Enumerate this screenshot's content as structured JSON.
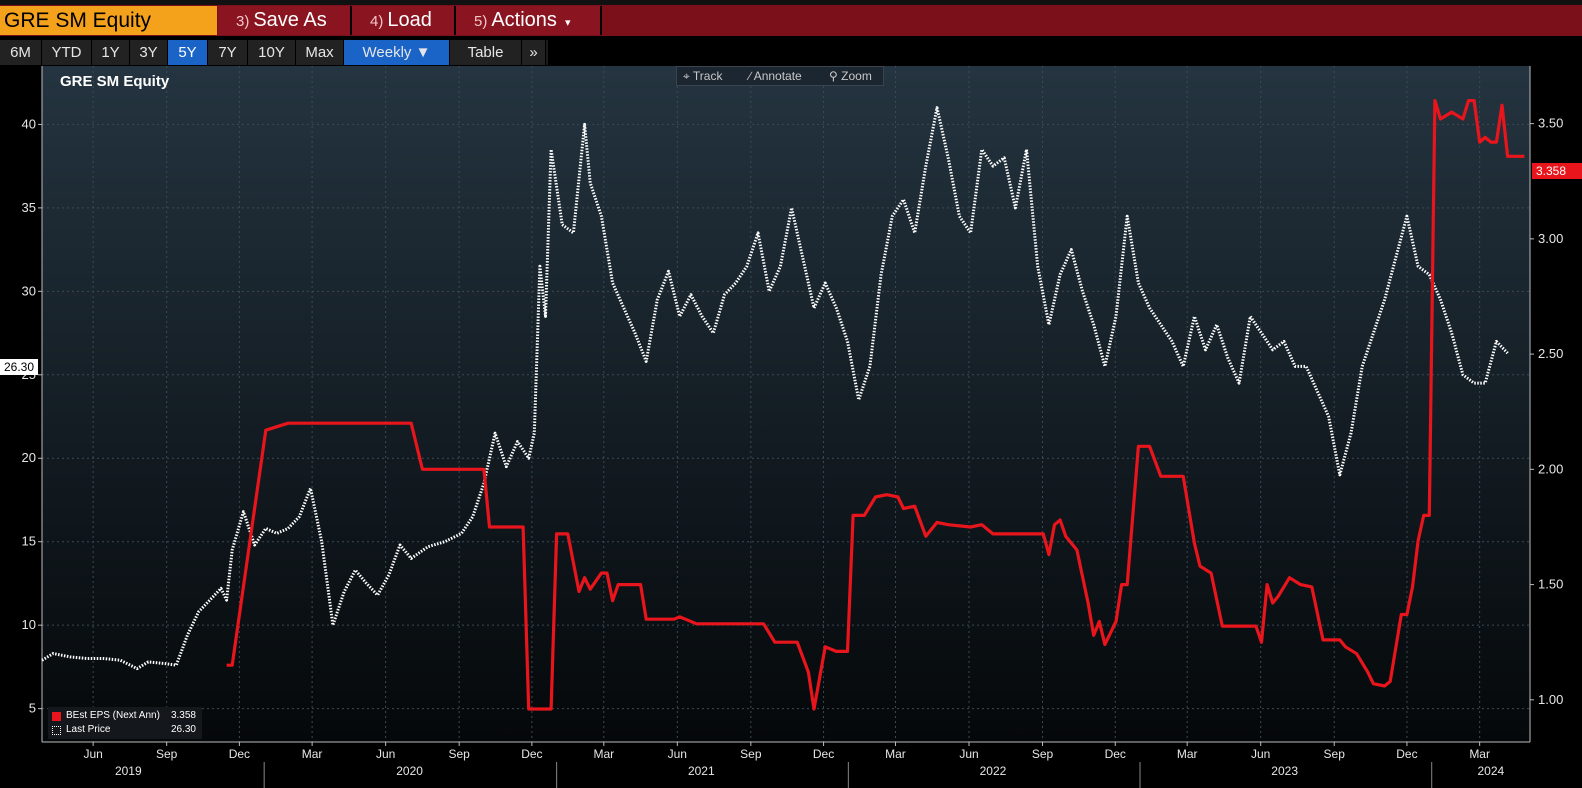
{
  "header": {
    "ticker": "GRE SM Equity",
    "save_as": {
      "num": "3)",
      "label": "Save As"
    },
    "load": {
      "num": "4)",
      "label": "Load"
    },
    "actions": {
      "num": "5)",
      "label": "Actions",
      "caret": "▾"
    }
  },
  "ranges": [
    "6M",
    "YTD",
    "1Y",
    "3Y",
    "5Y",
    "7Y",
    "10Y",
    "Max"
  ],
  "selected_range": "5Y",
  "frequency": {
    "label": "Weekly",
    "caret": "▼"
  },
  "table_label": "Table",
  "more_label": "»",
  "tools": {
    "track": "Track",
    "annotate": "Annotate",
    "zoom": "Zoom"
  },
  "icons": {
    "track": "crosshair-icon",
    "annotate": "pencil-icon",
    "zoom": "magnifier-icon"
  },
  "colors": {
    "eps": "#e8151c",
    "price": "#ffffff",
    "header": "#7b0f1a",
    "ticker_bg": "#f4a11c",
    "selected": "#1a64c8"
  },
  "current": {
    "left": "26.30",
    "right": "3.358"
  },
  "legend": {
    "eps_name": "BEst EPS (Next Ann)",
    "eps_value": "3.358",
    "price_name": "Last Price",
    "price_value": "26.30"
  },
  "chart_data": {
    "type": "line",
    "title": "GRE SM Equity",
    "grid": true,
    "legend_position": "bottom-left",
    "x_range": [
      "2019-03-29",
      "2024-05-03"
    ],
    "left_axis": {
      "ticks": [
        5,
        10,
        15,
        20,
        25,
        30,
        35,
        40
      ],
      "ylim": [
        3.0,
        43.5
      ]
    },
    "right_axis": {
      "ticks": [
        "1.00",
        "1.50",
        "2.00",
        "2.50",
        "3.00",
        "3.50"
      ],
      "ylim": [
        0.817,
        3.75
      ]
    },
    "month_ticks": [
      {
        "label": "Jun",
        "date": "2019-06-01"
      },
      {
        "label": "Sep",
        "date": "2019-09-01"
      },
      {
        "label": "Dec",
        "date": "2019-12-01"
      },
      {
        "label": "Mar",
        "date": "2020-03-01"
      },
      {
        "label": "Jun",
        "date": "2020-06-01"
      },
      {
        "label": "Sep",
        "date": "2020-09-01"
      },
      {
        "label": "Dec",
        "date": "2020-12-01"
      },
      {
        "label": "Mar",
        "date": "2021-03-01"
      },
      {
        "label": "Jun",
        "date": "2021-06-01"
      },
      {
        "label": "Sep",
        "date": "2021-09-01"
      },
      {
        "label": "Dec",
        "date": "2021-12-01"
      },
      {
        "label": "Mar",
        "date": "2022-03-01"
      },
      {
        "label": "Jun",
        "date": "2022-06-01"
      },
      {
        "label": "Sep",
        "date": "2022-09-01"
      },
      {
        "label": "Dec",
        "date": "2022-12-01"
      },
      {
        "label": "Mar",
        "date": "2023-03-01"
      },
      {
        "label": "Jun",
        "date": "2023-06-01"
      },
      {
        "label": "Sep",
        "date": "2023-09-01"
      },
      {
        "label": "Dec",
        "date": "2023-12-01"
      },
      {
        "label": "Mar",
        "date": "2024-03-01"
      }
    ],
    "year_ticks": [
      {
        "label": "2019",
        "date": "2019-07-15"
      },
      {
        "label": "2020",
        "date": "2020-07-01"
      },
      {
        "label": "2021",
        "date": "2021-07-01"
      },
      {
        "label": "2022",
        "date": "2022-07-01"
      },
      {
        "label": "2023",
        "date": "2023-07-01"
      },
      {
        "label": "2024",
        "date": "2024-03-15"
      }
    ],
    "year_separators": [
      "2020-01-01",
      "2021-01-01",
      "2022-01-01",
      "2023-01-01",
      "2024-01-01"
    ],
    "series": [
      {
        "name": "Last Price",
        "axis": "left",
        "style": "dotted",
        "points": [
          [
            "2019-03-29",
            7.9
          ],
          [
            "2019-04-12",
            8.3
          ],
          [
            "2019-05-03",
            8.1
          ],
          [
            "2019-05-24",
            8.0
          ],
          [
            "2019-06-14",
            8.0
          ],
          [
            "2019-07-05",
            7.9
          ],
          [
            "2019-07-26",
            7.4
          ],
          [
            "2019-08-09",
            7.8
          ],
          [
            "2019-08-30",
            7.7
          ],
          [
            "2019-09-13",
            7.6
          ],
          [
            "2019-09-27",
            9.4
          ],
          [
            "2019-10-11",
            10.8
          ],
          [
            "2019-10-25",
            11.5
          ],
          [
            "2019-11-08",
            12.2
          ],
          [
            "2019-11-15",
            11.5
          ],
          [
            "2019-11-22",
            14.5
          ],
          [
            "2019-12-06",
            16.8
          ],
          [
            "2019-12-20",
            14.8
          ],
          [
            "2020-01-03",
            15.8
          ],
          [
            "2020-01-17",
            15.5
          ],
          [
            "2020-01-31",
            15.8
          ],
          [
            "2020-02-14",
            16.5
          ],
          [
            "2020-02-28",
            18.2
          ],
          [
            "2020-03-13",
            15.0
          ],
          [
            "2020-03-27",
            10.0
          ],
          [
            "2020-04-10",
            12.0
          ],
          [
            "2020-04-24",
            13.3
          ],
          [
            "2020-05-08",
            12.5
          ],
          [
            "2020-05-22",
            11.8
          ],
          [
            "2020-06-05",
            13.0
          ],
          [
            "2020-06-19",
            14.8
          ],
          [
            "2020-07-03",
            14.0
          ],
          [
            "2020-07-24",
            14.7
          ],
          [
            "2020-08-14",
            15.0
          ],
          [
            "2020-09-04",
            15.5
          ],
          [
            "2020-09-18",
            16.5
          ],
          [
            "2020-10-02",
            18.5
          ],
          [
            "2020-10-16",
            21.5
          ],
          [
            "2020-10-30",
            19.5
          ],
          [
            "2020-11-13",
            21.0
          ],
          [
            "2020-11-27",
            20.0
          ],
          [
            "2020-12-04",
            21.5
          ],
          [
            "2020-12-11",
            31.5
          ],
          [
            "2020-12-18",
            28.5
          ],
          [
            "2020-12-25",
            38.5
          ],
          [
            "2021-01-08",
            34.0
          ],
          [
            "2021-01-22",
            33.5
          ],
          [
            "2021-02-05",
            40.0
          ],
          [
            "2021-02-12",
            36.5
          ],
          [
            "2021-02-26",
            34.5
          ],
          [
            "2021-03-12",
            30.5
          ],
          [
            "2021-03-26",
            29.0
          ],
          [
            "2021-04-09",
            27.5
          ],
          [
            "2021-04-23",
            25.8
          ],
          [
            "2021-05-07",
            29.5
          ],
          [
            "2021-05-21",
            31.2
          ],
          [
            "2021-06-04",
            28.5
          ],
          [
            "2021-06-18",
            29.8
          ],
          [
            "2021-07-02",
            28.5
          ],
          [
            "2021-07-16",
            27.5
          ],
          [
            "2021-07-30",
            29.8
          ],
          [
            "2021-08-13",
            30.5
          ],
          [
            "2021-08-27",
            31.5
          ],
          [
            "2021-09-10",
            33.5
          ],
          [
            "2021-09-24",
            30.0
          ],
          [
            "2021-10-08",
            31.5
          ],
          [
            "2021-10-22",
            35.0
          ],
          [
            "2021-11-05",
            32.0
          ],
          [
            "2021-11-19",
            29.0
          ],
          [
            "2021-12-03",
            30.5
          ],
          [
            "2021-12-17",
            29.0
          ],
          [
            "2021-12-31",
            27.0
          ],
          [
            "2022-01-14",
            23.5
          ],
          [
            "2022-01-28",
            25.5
          ],
          [
            "2022-02-11",
            31.0
          ],
          [
            "2022-02-25",
            34.5
          ],
          [
            "2022-03-11",
            35.5
          ],
          [
            "2022-03-25",
            33.5
          ],
          [
            "2022-04-08",
            37.5
          ],
          [
            "2022-04-22",
            41.0
          ],
          [
            "2022-05-06",
            38.0
          ],
          [
            "2022-05-20",
            34.5
          ],
          [
            "2022-06-03",
            33.5
          ],
          [
            "2022-06-17",
            38.5
          ],
          [
            "2022-07-01",
            37.5
          ],
          [
            "2022-07-15",
            38.0
          ],
          [
            "2022-07-29",
            35.0
          ],
          [
            "2022-08-12",
            38.5
          ],
          [
            "2022-08-26",
            31.5
          ],
          [
            "2022-09-09",
            28.0
          ],
          [
            "2022-09-23",
            31.0
          ],
          [
            "2022-10-07",
            32.5
          ],
          [
            "2022-10-21",
            30.0
          ],
          [
            "2022-11-04",
            28.0
          ],
          [
            "2022-11-18",
            25.5
          ],
          [
            "2022-12-02",
            28.5
          ],
          [
            "2022-12-16",
            34.5
          ],
          [
            "2022-12-30",
            30.5
          ],
          [
            "2023-01-13",
            29.0
          ],
          [
            "2023-01-27",
            28.0
          ],
          [
            "2023-02-10",
            27.0
          ],
          [
            "2023-02-24",
            25.5
          ],
          [
            "2023-03-10",
            28.5
          ],
          [
            "2023-03-24",
            26.5
          ],
          [
            "2023-04-07",
            28.0
          ],
          [
            "2023-04-21",
            26.0
          ],
          [
            "2023-05-05",
            24.5
          ],
          [
            "2023-05-19",
            28.5
          ],
          [
            "2023-06-02",
            27.5
          ],
          [
            "2023-06-16",
            26.5
          ],
          [
            "2023-06-30",
            27.0
          ],
          [
            "2023-07-14",
            25.5
          ],
          [
            "2023-07-28",
            25.5
          ],
          [
            "2023-08-11",
            24.0
          ],
          [
            "2023-08-25",
            22.5
          ],
          [
            "2023-09-08",
            19.0
          ],
          [
            "2023-09-22",
            21.5
          ],
          [
            "2023-10-06",
            25.5
          ],
          [
            "2023-10-20",
            27.5
          ],
          [
            "2023-11-03",
            29.5
          ],
          [
            "2023-11-17",
            32.0
          ],
          [
            "2023-12-01",
            34.5
          ],
          [
            "2023-12-15",
            31.5
          ],
          [
            "2023-12-29",
            31.0
          ],
          [
            "2024-01-12",
            29.5
          ],
          [
            "2024-01-26",
            27.5
          ],
          [
            "2024-02-09",
            25.0
          ],
          [
            "2024-02-23",
            24.5
          ],
          [
            "2024-03-08",
            24.5
          ],
          [
            "2024-03-22",
            27.0
          ],
          [
            "2024-04-05",
            26.3
          ]
        ]
      },
      {
        "name": "BEst EPS (Next Ann)",
        "axis": "right",
        "style": "solid",
        "points": [
          [
            "2019-11-15",
            1.15
          ],
          [
            "2019-11-22",
            1.15
          ],
          [
            "2020-01-03",
            2.17
          ],
          [
            "2020-01-31",
            2.2
          ],
          [
            "2020-07-03",
            2.2
          ],
          [
            "2020-07-17",
            2.0
          ],
          [
            "2020-10-02",
            2.0
          ],
          [
            "2020-10-09",
            1.75
          ],
          [
            "2020-11-20",
            1.75
          ],
          [
            "2020-11-27",
            0.96
          ],
          [
            "2020-12-25",
            0.96
          ],
          [
            "2021-01-01",
            1.72
          ],
          [
            "2021-01-15",
            1.72
          ],
          [
            "2021-01-29",
            1.47
          ],
          [
            "2021-02-05",
            1.53
          ],
          [
            "2021-02-12",
            1.48
          ],
          [
            "2021-02-26",
            1.55
          ],
          [
            "2021-03-05",
            1.55
          ],
          [
            "2021-03-12",
            1.43
          ],
          [
            "2021-03-19",
            1.5
          ],
          [
            "2021-04-16",
            1.5
          ],
          [
            "2021-04-23",
            1.35
          ],
          [
            "2021-05-28",
            1.35
          ],
          [
            "2021-06-04",
            1.36
          ],
          [
            "2021-06-25",
            1.33
          ],
          [
            "2021-09-17",
            1.33
          ],
          [
            "2021-10-01",
            1.25
          ],
          [
            "2021-10-29",
            1.25
          ],
          [
            "2021-11-12",
            1.12
          ],
          [
            "2021-11-19",
            0.96
          ],
          [
            "2021-12-03",
            1.23
          ],
          [
            "2021-12-17",
            1.21
          ],
          [
            "2021-12-31",
            1.21
          ],
          [
            "2022-01-07",
            1.8
          ],
          [
            "2022-01-21",
            1.8
          ],
          [
            "2022-02-04",
            1.88
          ],
          [
            "2022-02-18",
            1.89
          ],
          [
            "2022-03-04",
            1.88
          ],
          [
            "2022-03-11",
            1.83
          ],
          [
            "2022-03-25",
            1.84
          ],
          [
            "2022-04-08",
            1.71
          ],
          [
            "2022-04-22",
            1.77
          ],
          [
            "2022-05-06",
            1.76
          ],
          [
            "2022-06-03",
            1.75
          ],
          [
            "2022-06-17",
            1.76
          ],
          [
            "2022-07-01",
            1.72
          ],
          [
            "2022-09-02",
            1.72
          ],
          [
            "2022-09-09",
            1.63
          ],
          [
            "2022-09-16",
            1.76
          ],
          [
            "2022-09-23",
            1.78
          ],
          [
            "2022-09-30",
            1.71
          ],
          [
            "2022-10-14",
            1.65
          ],
          [
            "2022-10-28",
            1.42
          ],
          [
            "2022-11-04",
            1.28
          ],
          [
            "2022-11-11",
            1.34
          ],
          [
            "2022-11-18",
            1.24
          ],
          [
            "2022-12-02",
            1.34
          ],
          [
            "2022-12-09",
            1.5
          ],
          [
            "2022-12-16",
            1.5
          ],
          [
            "2022-12-30",
            2.1
          ],
          [
            "2023-01-13",
            2.1
          ],
          [
            "2023-01-27",
            1.97
          ],
          [
            "2023-02-24",
            1.97
          ],
          [
            "2023-03-10",
            1.68
          ],
          [
            "2023-03-17",
            1.58
          ],
          [
            "2023-03-31",
            1.55
          ],
          [
            "2023-04-14",
            1.32
          ],
          [
            "2023-05-26",
            1.32
          ],
          [
            "2023-06-02",
            1.25
          ],
          [
            "2023-06-09",
            1.5
          ],
          [
            "2023-06-16",
            1.42
          ],
          [
            "2023-06-23",
            1.45
          ],
          [
            "2023-07-07",
            1.53
          ],
          [
            "2023-07-21",
            1.5
          ],
          [
            "2023-08-04",
            1.49
          ],
          [
            "2023-08-18",
            1.26
          ],
          [
            "2023-09-08",
            1.26
          ],
          [
            "2023-09-15",
            1.23
          ],
          [
            "2023-09-29",
            1.2
          ],
          [
            "2023-10-13",
            1.12
          ],
          [
            "2023-10-20",
            1.07
          ],
          [
            "2023-11-03",
            1.06
          ],
          [
            "2023-11-10",
            1.08
          ],
          [
            "2023-11-24",
            1.37
          ],
          [
            "2023-12-01",
            1.37
          ],
          [
            "2023-12-08",
            1.49
          ],
          [
            "2023-12-15",
            1.69
          ],
          [
            "2023-12-22",
            1.8
          ],
          [
            "2023-12-29",
            1.8
          ],
          [
            "2024-01-05",
            3.6
          ],
          [
            "2024-01-12",
            3.52
          ],
          [
            "2024-01-26",
            3.55
          ],
          [
            "2024-02-09",
            3.52
          ],
          [
            "2024-02-16",
            3.6
          ],
          [
            "2024-02-23",
            3.6
          ],
          [
            "2024-03-01",
            3.42
          ],
          [
            "2024-03-08",
            3.44
          ],
          [
            "2024-03-15",
            3.42
          ],
          [
            "2024-03-22",
            3.42
          ],
          [
            "2024-03-29",
            3.58
          ],
          [
            "2024-04-05",
            3.358
          ],
          [
            "2024-04-26",
            3.358
          ]
        ]
      }
    ]
  }
}
